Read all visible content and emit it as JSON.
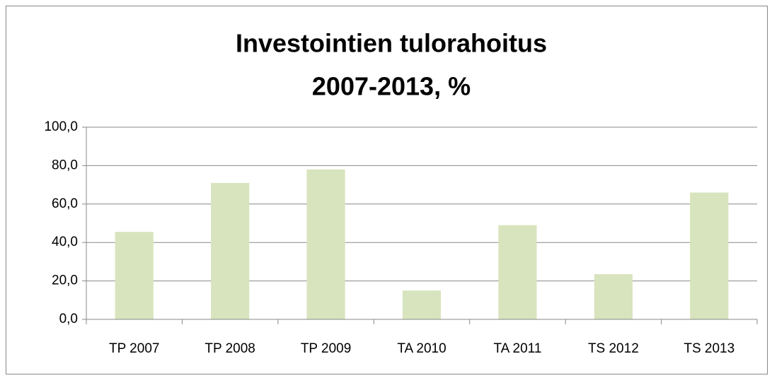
{
  "chart_data": {
    "type": "bar",
    "title": [
      "Investointien tulorahoitus",
      "2007-2013, %"
    ],
    "categories": [
      "TP 2007",
      "TP 2008",
      "TP 2009",
      "TA 2010",
      "TA 2011",
      "TS 2012",
      "TS 2013"
    ],
    "values": [
      45.5,
      71,
      78,
      15,
      49,
      23.5,
      66
    ],
    "color": "#d7e4bd",
    "ylim": [
      0,
      100
    ],
    "yticks": [
      {
        "value": 0,
        "label": "0,0"
      },
      {
        "value": 20,
        "label": "20,0"
      },
      {
        "value": 40,
        "label": "40,0"
      },
      {
        "value": 60,
        "label": "60,0"
      },
      {
        "value": 80,
        "label": "80,0"
      },
      {
        "value": 100,
        "label": "100,0"
      }
    ],
    "grid": true
  }
}
